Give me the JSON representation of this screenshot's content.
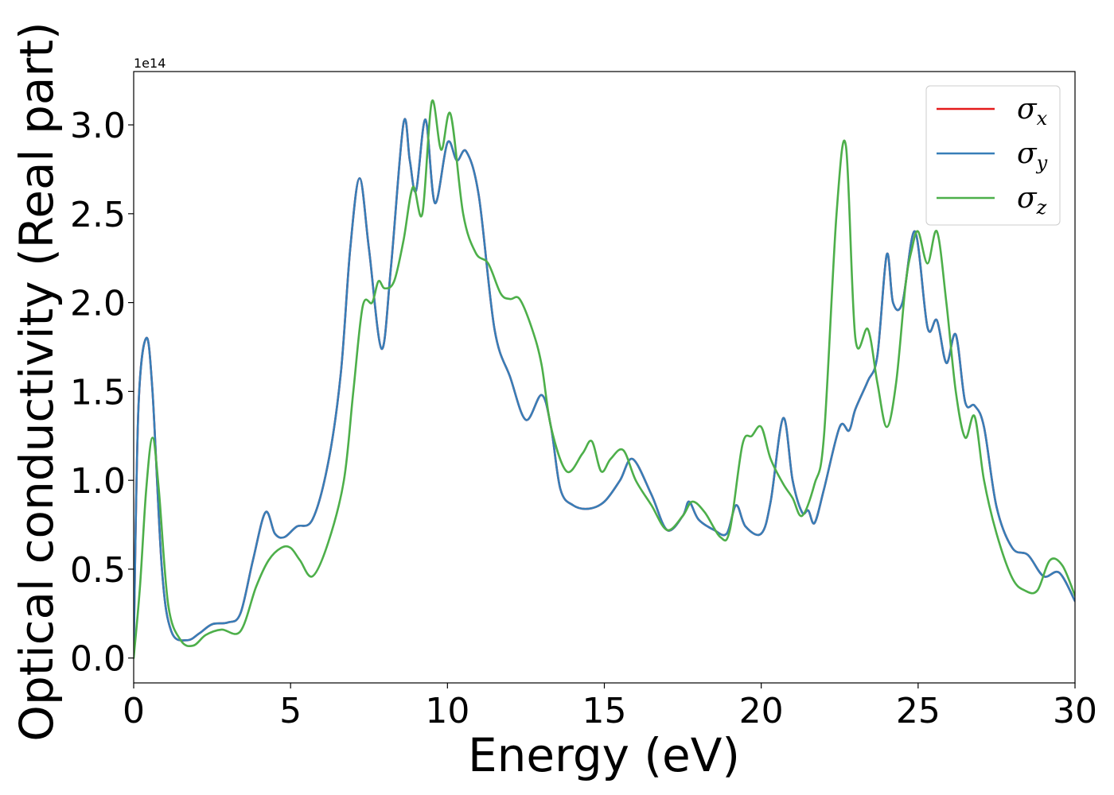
{
  "chart_data": {
    "type": "line",
    "xlabel": "Energy (eV)",
    "ylabel": "Optical conductivity (Real part)",
    "y_offset_text": "1e14",
    "xlim": [
      0,
      30
    ],
    "ylim": [
      -0.14,
      3.3
    ],
    "xticks": [
      0,
      5,
      10,
      15,
      20,
      25,
      30
    ],
    "yticks": [
      0.0,
      0.5,
      1.0,
      1.5,
      2.0,
      2.5,
      3.0
    ],
    "xtick_labels": [
      "0",
      "5",
      "10",
      "15",
      "20",
      "25",
      "30"
    ],
    "ytick_labels": [
      "0.0",
      "0.5",
      "1.0",
      "1.5",
      "2.0",
      "2.5",
      "3.0"
    ],
    "grid": false,
    "legend_position": "top-right",
    "legend": [
      {
        "symbol": "σ",
        "sub": "x",
        "color": "#e41a1c"
      },
      {
        "symbol": "σ",
        "sub": "y",
        "color": "#377eb8"
      },
      {
        "symbol": "σ",
        "sub": "z",
        "color": "#4daf4a"
      }
    ],
    "series": [
      {
        "name": "σx",
        "color": "#e41a1c",
        "x": [
          0,
          0.15,
          0.4,
          0.6,
          0.9,
          1.2,
          1.7,
          2.1,
          2.5,
          3.0,
          3.4,
          3.8,
          4.2,
          4.5,
          4.8,
          5.2,
          5.7,
          6.2,
          6.6,
          6.9,
          7.2,
          7.5,
          7.9,
          8.2,
          8.6,
          8.8,
          9.0,
          9.3,
          9.6,
          10.0,
          10.3,
          10.6,
          11.0,
          11.5,
          12.0,
          12.5,
          13.0,
          13.3,
          13.6,
          14.0,
          14.5,
          15.0,
          15.5,
          15.9,
          16.5,
          17.0,
          17.5,
          17.7,
          18.0,
          18.5,
          18.9,
          19.2,
          19.5,
          20.0,
          20.3,
          20.7,
          21.0,
          21.3,
          21.5,
          21.7,
          22.0,
          22.5,
          22.8,
          23.0,
          23.4,
          23.7,
          24.0,
          24.2,
          24.5,
          24.9,
          25.3,
          25.6,
          25.9,
          26.2,
          26.5,
          26.8,
          27.1,
          27.5,
          28.0,
          28.5,
          29.0,
          29.5,
          30.0
        ],
        "y": [
          0.05,
          1.4,
          1.8,
          1.5,
          0.5,
          0.15,
          0.1,
          0.14,
          0.19,
          0.2,
          0.25,
          0.55,
          0.82,
          0.7,
          0.68,
          0.74,
          0.78,
          1.1,
          1.6,
          2.3,
          2.7,
          2.3,
          1.74,
          2.2,
          3.01,
          2.8,
          2.63,
          3.03,
          2.56,
          2.9,
          2.8,
          2.85,
          2.6,
          1.85,
          1.58,
          1.34,
          1.48,
          1.3,
          0.95,
          0.86,
          0.84,
          0.88,
          1.0,
          1.12,
          0.92,
          0.72,
          0.8,
          0.88,
          0.78,
          0.72,
          0.7,
          0.86,
          0.74,
          0.7,
          0.88,
          1.35,
          1.0,
          0.82,
          0.83,
          0.76,
          0.95,
          1.3,
          1.28,
          1.4,
          1.56,
          1.7,
          2.27,
          2.0,
          2.0,
          2.4,
          1.86,
          1.9,
          1.66,
          1.82,
          1.44,
          1.42,
          1.3,
          0.85,
          0.62,
          0.58,
          0.46,
          0.48,
          0.32
        ]
      },
      {
        "name": "σy",
        "color": "#377eb8",
        "x": [
          0,
          0.15,
          0.4,
          0.6,
          0.9,
          1.2,
          1.7,
          2.1,
          2.5,
          3.0,
          3.4,
          3.8,
          4.2,
          4.5,
          4.8,
          5.2,
          5.7,
          6.2,
          6.6,
          6.9,
          7.2,
          7.5,
          7.9,
          8.2,
          8.6,
          8.8,
          9.0,
          9.3,
          9.6,
          10.0,
          10.3,
          10.6,
          11.0,
          11.5,
          12.0,
          12.5,
          13.0,
          13.3,
          13.6,
          14.0,
          14.5,
          15.0,
          15.5,
          15.9,
          16.5,
          17.0,
          17.5,
          17.7,
          18.0,
          18.5,
          18.9,
          19.2,
          19.5,
          20.0,
          20.3,
          20.7,
          21.0,
          21.3,
          21.5,
          21.7,
          22.0,
          22.5,
          22.8,
          23.0,
          23.4,
          23.7,
          24.0,
          24.2,
          24.5,
          24.9,
          25.3,
          25.6,
          25.9,
          26.2,
          26.5,
          26.8,
          27.1,
          27.5,
          28.0,
          28.5,
          29.0,
          29.5,
          30.0
        ],
        "y": [
          0.05,
          1.4,
          1.8,
          1.5,
          0.5,
          0.15,
          0.1,
          0.14,
          0.19,
          0.2,
          0.25,
          0.55,
          0.82,
          0.7,
          0.68,
          0.74,
          0.78,
          1.1,
          1.6,
          2.3,
          2.7,
          2.3,
          1.74,
          2.2,
          3.01,
          2.8,
          2.63,
          3.03,
          2.56,
          2.9,
          2.8,
          2.85,
          2.6,
          1.85,
          1.58,
          1.34,
          1.48,
          1.3,
          0.95,
          0.86,
          0.84,
          0.88,
          1.0,
          1.12,
          0.92,
          0.72,
          0.8,
          0.88,
          0.78,
          0.72,
          0.7,
          0.86,
          0.74,
          0.7,
          0.88,
          1.35,
          1.0,
          0.82,
          0.83,
          0.76,
          0.95,
          1.3,
          1.28,
          1.4,
          1.56,
          1.7,
          2.27,
          2.0,
          2.0,
          2.4,
          1.86,
          1.9,
          1.66,
          1.82,
          1.44,
          1.42,
          1.3,
          0.85,
          0.62,
          0.58,
          0.46,
          0.48,
          0.32
        ]
      },
      {
        "name": "σz",
        "color": "#4daf4a",
        "x": [
          0,
          0.2,
          0.4,
          0.6,
          0.8,
          1.1,
          1.5,
          1.9,
          2.3,
          2.8,
          3.4,
          3.9,
          4.3,
          4.7,
          5.0,
          5.3,
          5.7,
          6.2,
          6.7,
          7.0,
          7.3,
          7.6,
          7.8,
          8.0,
          8.3,
          8.6,
          8.9,
          9.2,
          9.5,
          9.8,
          10.1,
          10.5,
          10.9,
          11.3,
          11.7,
          12.0,
          12.3,
          12.7,
          13.0,
          13.3,
          13.8,
          14.3,
          14.6,
          14.9,
          15.2,
          15.6,
          16.0,
          16.5,
          17.0,
          17.5,
          17.8,
          18.2,
          18.7,
          19.0,
          19.4,
          19.7,
          20.0,
          20.3,
          20.7,
          21.0,
          21.3,
          21.7,
          22.0,
          22.4,
          22.7,
          23.0,
          23.4,
          23.7,
          24.0,
          24.3,
          24.6,
          24.8,
          25.0,
          25.3,
          25.6,
          25.9,
          26.2,
          26.5,
          26.8,
          27.1,
          27.5,
          28.0,
          28.4,
          28.8,
          29.2,
          29.6,
          30.0
        ],
        "y": [
          0.0,
          0.4,
          0.95,
          1.24,
          0.95,
          0.3,
          0.1,
          0.07,
          0.13,
          0.16,
          0.15,
          0.4,
          0.55,
          0.62,
          0.62,
          0.55,
          0.46,
          0.65,
          1.0,
          1.5,
          1.98,
          2.0,
          2.12,
          2.08,
          2.12,
          2.35,
          2.65,
          2.5,
          3.13,
          2.86,
          3.06,
          2.5,
          2.28,
          2.22,
          2.05,
          2.02,
          2.02,
          1.85,
          1.65,
          1.3,
          1.05,
          1.15,
          1.22,
          1.05,
          1.12,
          1.17,
          1.0,
          0.86,
          0.72,
          0.8,
          0.88,
          0.82,
          0.68,
          0.72,
          1.2,
          1.25,
          1.3,
          1.12,
          0.98,
          0.9,
          0.8,
          0.98,
          1.25,
          2.5,
          2.88,
          1.8,
          1.85,
          1.55,
          1.3,
          1.55,
          2.1,
          2.3,
          2.4,
          2.22,
          2.4,
          2.0,
          1.5,
          1.24,
          1.36,
          1.0,
          0.7,
          0.45,
          0.38,
          0.38,
          0.55,
          0.52,
          0.35
        ]
      }
    ]
  }
}
